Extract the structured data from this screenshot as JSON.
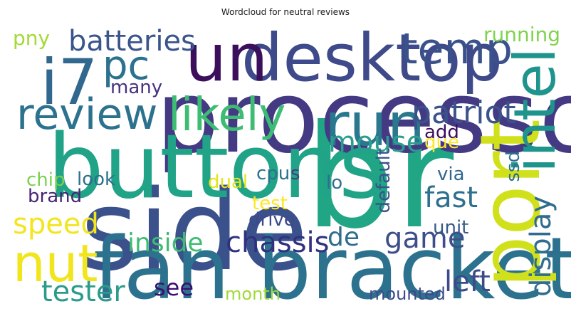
{
  "chart_data": {
    "type": "wordcloud",
    "title": "Wordcloud for neutral reviews",
    "colormap": "viridis",
    "background": "#ffffff",
    "words": [
      {
        "text": "br",
        "weight": 1.0,
        "color": "#21a685"
      },
      {
        "text": "side",
        "weight": 0.78,
        "color": "#3b518b"
      },
      {
        "text": "processor",
        "weight": 0.7,
        "color": "#443a83"
      },
      {
        "text": "buttons",
        "weight": 0.62,
        "color": "#20a386"
      },
      {
        "text": "fan bracket",
        "weight": 0.6,
        "color": "#2c728e"
      },
      {
        "text": "port",
        "weight": 0.58,
        "color": "#d0e11c"
      },
      {
        "text": "desktop",
        "weight": 0.46,
        "color": "#3e4a89"
      },
      {
        "text": "un",
        "weight": 0.46,
        "color": "#3c0f5c"
      },
      {
        "text": "i7",
        "weight": 0.44,
        "color": "#31688e"
      },
      {
        "text": "run",
        "weight": 0.42,
        "color": "#2a788e"
      },
      {
        "text": "intel",
        "weight": 0.4,
        "color": "#1f948c"
      },
      {
        "text": "nut",
        "weight": 0.36,
        "color": "#f1e51d"
      },
      {
        "text": "likely",
        "weight": 0.32,
        "color": "#3dbc74"
      },
      {
        "text": "review",
        "weight": 0.3,
        "color": "#2c728e"
      },
      {
        "text": "temp",
        "weight": 0.3,
        "color": "#3b518b"
      },
      {
        "text": "pc",
        "weight": 0.28,
        "color": "#2c728e"
      },
      {
        "text": "patriot",
        "weight": 0.22,
        "color": "#3b528b"
      },
      {
        "text": "batteries",
        "weight": 0.2,
        "color": "#3a548c"
      },
      {
        "text": "mouse",
        "weight": 0.2,
        "color": "#2a9d8f"
      },
      {
        "text": "chassis",
        "weight": 0.2,
        "color": "#30327f"
      },
      {
        "text": "game",
        "weight": 0.2,
        "color": "#3d4e8a"
      },
      {
        "text": "fast",
        "weight": 0.2,
        "color": "#2d6f8e"
      },
      {
        "text": "speed",
        "weight": 0.2,
        "color": "#f3e51e"
      },
      {
        "text": "tester",
        "weight": 0.2,
        "color": "#2b9b8a"
      },
      {
        "text": "left",
        "weight": 0.2,
        "color": "#3e4989"
      },
      {
        "text": "display",
        "weight": 0.2,
        "color": "#2f6c8e"
      },
      {
        "text": "inside",
        "weight": 0.18,
        "color": "#3fbc73"
      },
      {
        "text": "de",
        "weight": 0.18,
        "color": "#2f6d8e"
      },
      {
        "text": "see",
        "weight": 0.16,
        "color": "#3b0f70"
      },
      {
        "text": "running",
        "weight": 0.14,
        "color": "#7fd34e"
      },
      {
        "text": "pny",
        "weight": 0.14,
        "color": "#a2da37"
      },
      {
        "text": "many",
        "weight": 0.13,
        "color": "#46327e"
      },
      {
        "text": "add",
        "weight": 0.13,
        "color": "#3c0f5c"
      },
      {
        "text": "que",
        "weight": 0.13,
        "color": "#fde725"
      },
      {
        "text": "chip",
        "weight": 0.13,
        "color": "#7ad151"
      },
      {
        "text": "look",
        "weight": 0.13,
        "color": "#2d708e"
      },
      {
        "text": "dual",
        "weight": 0.13,
        "color": "#e5e419"
      },
      {
        "text": "cpu",
        "weight": 0.13,
        "color": "#2c728e"
      },
      {
        "text": "s",
        "weight": 0.13,
        "color": "#433e85"
      },
      {
        "text": "via",
        "weight": 0.13,
        "color": "#31678e"
      },
      {
        "text": "ssd",
        "weight": 0.13,
        "color": "#2e6e8e"
      },
      {
        "text": "brand",
        "weight": 0.13,
        "color": "#482475"
      },
      {
        "text": "test",
        "weight": 0.13,
        "color": "#fde725"
      },
      {
        "text": "lo",
        "weight": 0.13,
        "color": "#2d708e"
      },
      {
        "text": "default",
        "weight": 0.13,
        "color": "#3b518b"
      },
      {
        "text": "drive",
        "weight": 0.13,
        "color": "#3e4a89"
      },
      {
        "text": "unit",
        "weight": 0.13,
        "color": "#38598c"
      },
      {
        "text": "month",
        "weight": 0.12,
        "color": "#a0da39"
      },
      {
        "text": "mounted",
        "weight": 0.12,
        "color": "#3e4a89"
      }
    ]
  }
}
